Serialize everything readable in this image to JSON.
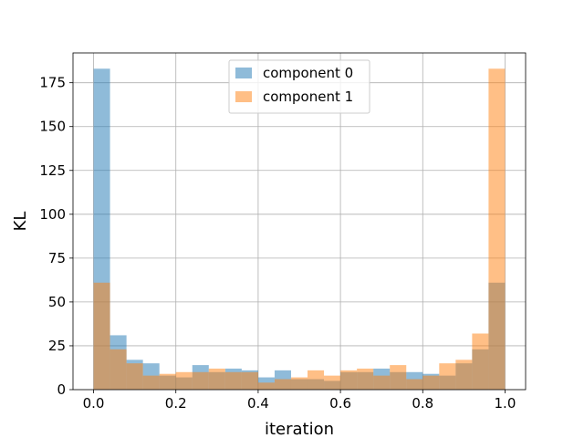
{
  "chart_data": {
    "type": "histogram",
    "xlabel": "iteration",
    "ylabel": "KL",
    "xlim": [
      -0.05,
      1.05
    ],
    "ylim": [
      0,
      192
    ],
    "bin_start": 0.0,
    "bin_width": 0.04,
    "grid": true,
    "legend_position": "upper-center",
    "x_ticks": [
      "0.0",
      "0.2",
      "0.4",
      "0.6",
      "0.8",
      "1.0"
    ],
    "y_ticks": [
      "0",
      "25",
      "50",
      "75",
      "100",
      "125",
      "150",
      "175"
    ],
    "series": [
      {
        "name": "component 0",
        "color": "#1f77b4",
        "alpha": 0.5,
        "values": [
          183,
          31,
          17,
          15,
          8,
          7,
          14,
          10,
          12,
          11,
          7,
          11,
          6,
          6,
          5,
          10,
          10,
          12,
          10,
          10,
          9,
          8,
          15,
          23,
          61
        ]
      },
      {
        "name": "component 1",
        "color": "#ff7f0e",
        "alpha": 0.5,
        "values": [
          61,
          23,
          15,
          8,
          9,
          10,
          10,
          12,
          10,
          10,
          4,
          6,
          7,
          11,
          8,
          11,
          12,
          8,
          14,
          6,
          8,
          15,
          17,
          32,
          183
        ]
      }
    ]
  }
}
